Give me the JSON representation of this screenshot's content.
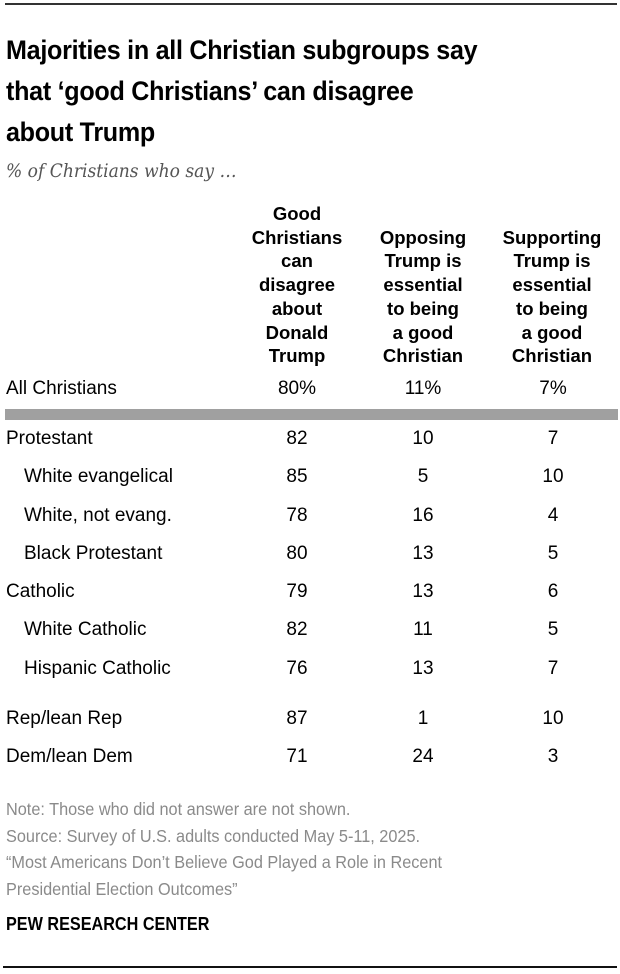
{
  "title": "Majorities in all Christian subgroups say that ‘good Christians’ can disagree about Trump",
  "title_lines": [
    "Majorities in all Christian subgroups say",
    "that ‘good Christians’ can disagree",
    "about Trump"
  ],
  "subtitle": "% of Christians who say …",
  "columns": [
    {
      "lines": [
        "Good",
        "Christians",
        "can",
        "disagree",
        "about",
        "Donald",
        "Trump"
      ]
    },
    {
      "lines": [
        "Opposing",
        "Trump is",
        "essential",
        "to being",
        "a good",
        "Christian"
      ]
    },
    {
      "lines": [
        "Supporting",
        "Trump is",
        "essential",
        "to being",
        "a good",
        "Christian"
      ]
    }
  ],
  "colors": {
    "separator": "#a0a0a0",
    "notes": "#8a8a8a",
    "text": "#000000"
  },
  "chart_data": {
    "type": "table",
    "title": "Majorities in all Christian subgroups say that ‘good Christians’ can disagree about Trump",
    "subtitle": "% of Christians who say …",
    "columns": [
      "Good Christians can disagree about Donald Trump",
      "Opposing Trump is essential to being a good Christian",
      "Supporting Trump is essential to being a good Christian"
    ],
    "rows": [
      {
        "label": "All Christians",
        "indent": false,
        "values": [
          "80%",
          "11%",
          "7%"
        ]
      },
      {
        "label": "Protestant",
        "indent": false,
        "values": [
          "82",
          "10",
          "7"
        ]
      },
      {
        "label": "White evangelical",
        "indent": true,
        "values": [
          "85",
          "5",
          "10"
        ]
      },
      {
        "label": "White, not evang.",
        "indent": true,
        "values": [
          "78",
          "16",
          "4"
        ]
      },
      {
        "label": "Black Protestant",
        "indent": true,
        "values": [
          "80",
          "13",
          "5"
        ]
      },
      {
        "label": "Catholic",
        "indent": false,
        "values": [
          "79",
          "13",
          "6"
        ]
      },
      {
        "label": "White Catholic",
        "indent": true,
        "values": [
          "82",
          "11",
          "5"
        ]
      },
      {
        "label": "Hispanic Catholic",
        "indent": true,
        "values": [
          "76",
          "13",
          "7"
        ]
      },
      {
        "label": "Rep/lean Rep",
        "indent": false,
        "values": [
          "87",
          "1",
          "10"
        ]
      },
      {
        "label": "Dem/lean Dem",
        "indent": false,
        "values": [
          "71",
          "24",
          "3"
        ]
      }
    ]
  },
  "notes": [
    "Note: Those who did not answer are not shown.",
    "Source: Survey of U.S. adults conducted May 5-11, 2025.",
    "“Most Americans Don’t Believe God Played a Role in Recent",
    "Presidential Election Outcomes”"
  ],
  "brand": "PEW RESEARCH CENTER"
}
